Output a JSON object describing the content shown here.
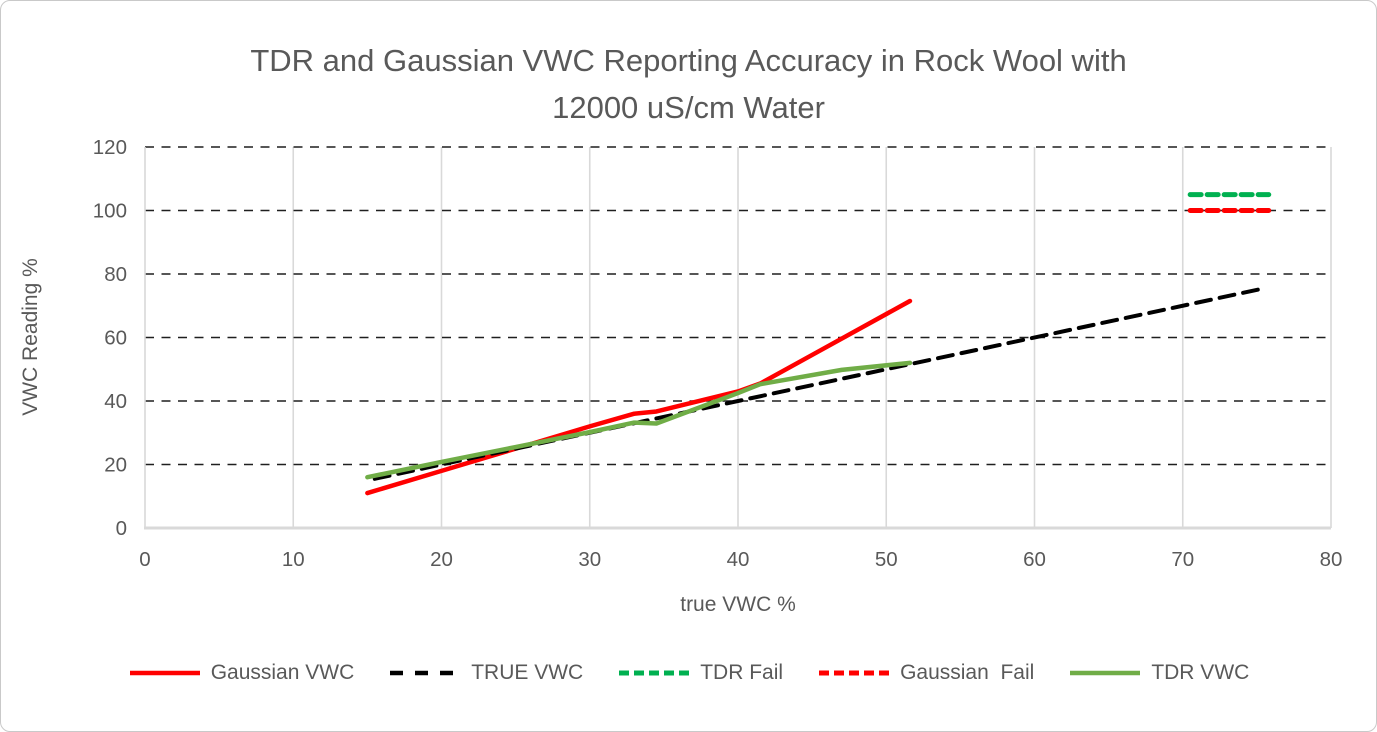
{
  "chart_data": {
    "type": "line",
    "title": "TDR and Gaussian VWC Reporting Accuracy in Rock Wool with 12000 uS/cm Water",
    "title_lines": [
      "TDR and Gaussian VWC Reporting Accuracy in Rock Wool with",
      "12000 uS/cm Water"
    ],
    "xlabel": "true VWC %",
    "ylabel": "VWC Reading %",
    "xlim": [
      0,
      80
    ],
    "ylim": [
      0,
      120
    ],
    "xticks": [
      0,
      10,
      20,
      30,
      40,
      50,
      60,
      70,
      80
    ],
    "yticks": [
      0,
      20,
      40,
      60,
      80,
      100,
      120
    ],
    "grid": {
      "horizontal": "dashed-black",
      "vertical": "solid-light-gray"
    },
    "legend_position": "bottom",
    "colors": {
      "text": "#595959",
      "grid_vertical": "#D9D9D9",
      "axis": "#D9D9D9",
      "grid_horizontal": "#1F1F1F"
    },
    "series": [
      {
        "name": "Gaussian VWC",
        "color": "#FF0000",
        "style": "solid",
        "x": [
          15,
          20,
          25,
          30,
          33,
          34.5,
          40,
          41.5,
          45,
          51.6
        ],
        "y": [
          11,
          18,
          25,
          32,
          36,
          36.7,
          43,
          45.5,
          54.5,
          71.5
        ]
      },
      {
        "name": "TRUE VWC",
        "color": "#000000",
        "style": "dash-long",
        "x": [
          15.5,
          75.5
        ],
        "y": [
          15.5,
          75.5
        ]
      },
      {
        "name": "TDR Fail",
        "color": "#00B050",
        "style": "dash-short",
        "x": [
          70.5,
          75.8
        ],
        "y": [
          105,
          105
        ]
      },
      {
        "name": "Gaussian  Fail",
        "color": "#FF0000",
        "style": "dash-short",
        "x": [
          70.5,
          75.8
        ],
        "y": [
          100,
          100
        ]
      },
      {
        "name": "TDR VWC",
        "color": "#70AD47",
        "style": "solid",
        "x": [
          15,
          20,
          25,
          30,
          33,
          34.5,
          40,
          41.5,
          47,
          51.6
        ],
        "y": [
          16,
          20.8,
          25.5,
          30.2,
          33.2,
          32.9,
          42.5,
          45.3,
          49.8,
          52
        ]
      }
    ]
  }
}
